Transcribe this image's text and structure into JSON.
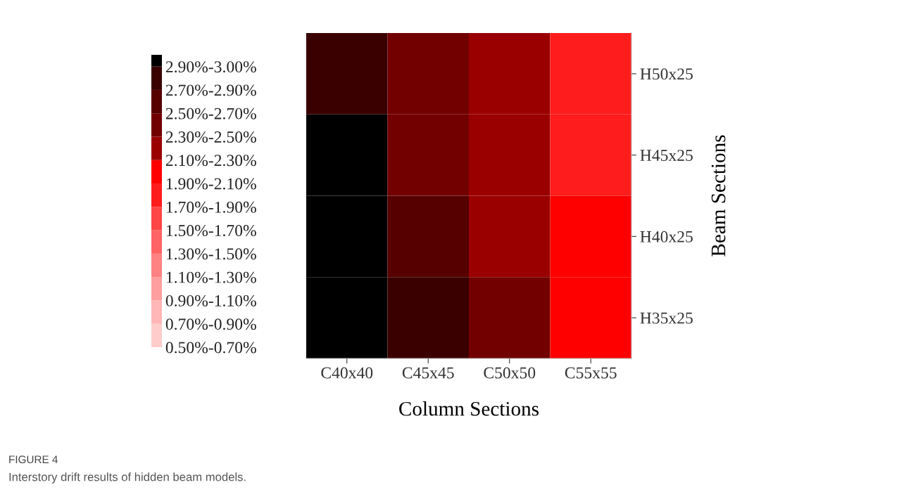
{
  "chart_data": {
    "type": "heatmap",
    "xlabel": "Column Sections",
    "ylabel": "Beam Sections",
    "categories": [
      "C40x40",
      "C45x45",
      "C50x50",
      "C55x55"
    ],
    "y_categories": [
      "H50x25",
      "H45x25",
      "H40x25",
      "H35x25"
    ],
    "cells": [
      [
        2.8,
        2.4,
        2.2,
        1.8
      ],
      [
        2.95,
        2.4,
        2.2,
        1.8
      ],
      [
        2.95,
        2.6,
        2.2,
        2.0
      ],
      [
        2.95,
        2.8,
        2.4,
        2.0
      ]
    ],
    "clim": [
      0.5,
      3.0
    ],
    "cticks": [
      {
        "value": 2.9,
        "label": "2.90%-3.00%"
      },
      {
        "value": 2.7,
        "label": "2.70%-2.90%"
      },
      {
        "value": 2.5,
        "label": "2.50%-2.70%"
      },
      {
        "value": 2.3,
        "label": "2.30%-2.50%"
      },
      {
        "value": 2.1,
        "label": "2.10%-2.30%"
      },
      {
        "value": 1.9,
        "label": "1.90%-2.10%"
      },
      {
        "value": 1.7,
        "label": "1.70%-1.90%"
      },
      {
        "value": 1.5,
        "label": "1.50%-1.70%"
      },
      {
        "value": 1.3,
        "label": "1.30%-1.50%"
      },
      {
        "value": 1.1,
        "label": "1.10%-1.30%"
      },
      {
        "value": 0.9,
        "label": "0.90%-1.10%"
      },
      {
        "value": 0.7,
        "label": "0.70%-0.90%"
      },
      {
        "value": 0.5,
        "label": "0.50%-0.70%"
      }
    ],
    "colors": [
      "#000000",
      "#3a0000",
      "#560000",
      "#720000",
      "#9a0000",
      "#ff0000",
      "#ff1c1c",
      "#ff4545",
      "#ff6464",
      "#ff8282",
      "#ff9e9e",
      "#ffb6b6",
      "#ffcccc"
    ],
    "annotations": [
      "FIGURE 4",
      "Interstory drift results of hidden beam models."
    ]
  }
}
